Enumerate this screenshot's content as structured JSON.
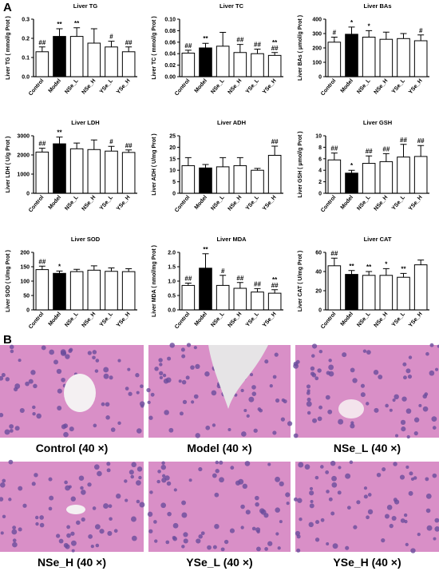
{
  "panel_labels": [
    "A",
    "B"
  ],
  "chart_data": [
    {
      "type": "bar",
      "title": "Liver TG",
      "y_label": "Liver TG ( mmol/g Prot )",
      "categories": [
        "Control",
        "Model",
        "NSe_L",
        "NSe_H",
        "YSe_L",
        "YSe_H"
      ],
      "values": [
        0.13,
        0.21,
        0.21,
        0.175,
        0.155,
        0.13
      ],
      "errors": [
        0.025,
        0.04,
        0.045,
        0.075,
        0.03,
        0.025
      ],
      "annotations": [
        [
          "##"
        ],
        [
          "**"
        ],
        [
          "**"
        ],
        null,
        [
          "#"
        ],
        [
          "##"
        ]
      ],
      "colors": [
        "#ffffff",
        "#000000",
        "#ffffff",
        "#ffffff",
        "#ffffff",
        "#ffffff"
      ],
      "ylim": [
        0,
        0.3
      ],
      "yticks": [
        {
          "value": 0,
          "label": "0.0"
        },
        0.1,
        0.2,
        0.3
      ]
    },
    {
      "type": "bar",
      "title": "Liver TC",
      "y_label": "Liver TC ( mmol/g Prot )",
      "categories": [
        "Control",
        "Model",
        "NSe_L",
        "NSe_H",
        "YSe_L",
        "YSe_H"
      ],
      "values": [
        0.041,
        0.05,
        0.053,
        0.042,
        0.04,
        0.037
      ],
      "errors": [
        0.005,
        0.008,
        0.024,
        0.014,
        0.008,
        0.005
      ],
      "annotations": [
        [
          "##"
        ],
        [
          "**"
        ],
        null,
        [
          "##"
        ],
        [
          "##"
        ],
        [
          "**",
          "##"
        ]
      ],
      "colors": [
        "#ffffff",
        "#000000",
        "#ffffff",
        "#ffffff",
        "#ffffff",
        "#ffffff"
      ],
      "ylim": [
        0,
        0.1
      ],
      "yticks": [
        {
          "value": 0,
          "label": "0.00"
        },
        0.02,
        0.04,
        0.06,
        0.08,
        {
          "value": 0.1,
          "label": "0.10"
        }
      ]
    },
    {
      "type": "bar",
      "title": "Liver BAs",
      "y_label": "Liver BAs ( μmol/g Prot )",
      "categories": [
        "Control",
        "Model",
        "NSe_L",
        "NSe_H",
        "YSe_L",
        "YSe_H"
      ],
      "values": [
        240,
        295,
        275,
        260,
        265,
        250
      ],
      "errors": [
        35,
        50,
        45,
        50,
        35,
        40
      ],
      "annotations": [
        [
          "#"
        ],
        [
          "*"
        ],
        [
          "*"
        ],
        null,
        null,
        [
          "#"
        ]
      ],
      "colors": [
        "#ffffff",
        "#000000",
        "#ffffff",
        "#ffffff",
        "#ffffff",
        "#ffffff"
      ],
      "ylim": [
        0,
        400
      ],
      "yticks": [
        0,
        100,
        200,
        300,
        400
      ]
    },
    {
      "type": "bar",
      "title": "Liver LDH",
      "y_label": "Liver LDH ( U/g Prot )",
      "categories": [
        "Control",
        "Model",
        "NSe_L",
        "NSe_H",
        "YSe_L",
        "YSe_H"
      ],
      "values": [
        2150,
        2580,
        2320,
        2280,
        2200,
        2130
      ],
      "errors": [
        200,
        350,
        300,
        500,
        250,
        130
      ],
      "annotations": [
        [
          "##"
        ],
        [
          "**"
        ],
        null,
        null,
        [
          "#"
        ],
        [
          "##"
        ]
      ],
      "colors": [
        "#ffffff",
        "#000000",
        "#ffffff",
        "#ffffff",
        "#ffffff",
        "#ffffff"
      ],
      "ylim": [
        0,
        3000
      ],
      "yticks": [
        0,
        1000,
        2000,
        3000
      ]
    },
    {
      "type": "bar",
      "title": "Liver ADH",
      "y_label": "Liver ADH ( U/mg Prot )",
      "categories": [
        "Control",
        "Model",
        "NSe_L",
        "NSe_H",
        "YSe_L",
        "YSe_H"
      ],
      "values": [
        12,
        11,
        11.5,
        12,
        10,
        16.5
      ],
      "errors": [
        3.5,
        1.5,
        4,
        3.5,
        0.8,
        4
      ],
      "annotations": [
        null,
        null,
        null,
        null,
        null,
        [
          "##"
        ]
      ],
      "colors": [
        "#ffffff",
        "#000000",
        "#ffffff",
        "#ffffff",
        "#ffffff",
        "#ffffff"
      ],
      "ylim": [
        0,
        25
      ],
      "yticks": [
        0,
        5,
        10,
        15,
        20,
        25
      ]
    },
    {
      "type": "bar",
      "title": "Liver GSH",
      "y_label": "Liver GSH ( μmol/g Prot )",
      "categories": [
        "Control",
        "Model",
        "NSe_L",
        "NSe_H",
        "YSe_L",
        "YSe_H"
      ],
      "values": [
        5.8,
        3.5,
        5.2,
        5.5,
        6.3,
        6.4
      ],
      "errors": [
        1.2,
        0.5,
        1.3,
        1.4,
        2.2,
        1.9
      ],
      "annotations": [
        [
          "##"
        ],
        [
          "*"
        ],
        [
          "##"
        ],
        [
          "##"
        ],
        [
          "##"
        ],
        [
          "##"
        ]
      ],
      "colors": [
        "#ffffff",
        "#000000",
        "#ffffff",
        "#ffffff",
        "#ffffff",
        "#ffffff"
      ],
      "ylim": [
        0,
        10
      ],
      "yticks": [
        0,
        2,
        4,
        6,
        8,
        10
      ]
    },
    {
      "type": "bar",
      "title": "Liver SOD",
      "y_label": "Liver SOD ( U/mg Prot )",
      "categories": [
        "Control",
        "Model",
        "NSe_L",
        "NSe_H",
        "YSe_L",
        "YSe_H"
      ],
      "values": [
        140,
        127,
        133,
        138,
        134,
        133
      ],
      "errors": [
        12,
        8,
        8,
        15,
        12,
        10
      ],
      "annotations": [
        [
          "##"
        ],
        [
          "*"
        ],
        null,
        null,
        null,
        null
      ],
      "colors": [
        "#ffffff",
        "#000000",
        "#ffffff",
        "#ffffff",
        "#ffffff",
        "#ffffff"
      ],
      "ylim": [
        0,
        200
      ],
      "yticks": [
        0,
        50,
        100,
        150,
        200
      ]
    },
    {
      "type": "bar",
      "title": "Liver MDA",
      "y_label": "Liver MDA ( nmol/mg Prot )",
      "categories": [
        "Control",
        "Model",
        "NSe_L",
        "NSe_H",
        "YSe_L",
        "YSe_H"
      ],
      "values": [
        0.85,
        1.45,
        0.85,
        0.75,
        0.62,
        0.58
      ],
      "errors": [
        0.08,
        0.5,
        0.35,
        0.2,
        0.12,
        0.12
      ],
      "annotations": [
        [
          "##"
        ],
        [
          "**"
        ],
        [
          "#"
        ],
        [
          "##"
        ],
        [
          "##"
        ],
        [
          "**",
          "##"
        ]
      ],
      "colors": [
        "#ffffff",
        "#000000",
        "#ffffff",
        "#ffffff",
        "#ffffff",
        "#ffffff"
      ],
      "ylim": [
        0,
        2
      ],
      "yticks": [
        {
          "value": 0,
          "label": "0.0"
        },
        0.5,
        {
          "value": 1,
          "label": "1.0"
        },
        1.5,
        {
          "value": 2,
          "label": "2.0"
        }
      ]
    },
    {
      "type": "bar",
      "title": "Liver CAT",
      "y_label": "Liver CAT ( U/mg Prot )",
      "categories": [
        "Control",
        "Model",
        "NSe_L",
        "NSe_H",
        "YSe_L",
        "YSe_H"
      ],
      "values": [
        46,
        37,
        36,
        36,
        34,
        47
      ],
      "errors": [
        8,
        4,
        4,
        7,
        4,
        5
      ],
      "annotations": [
        [
          "##"
        ],
        [
          "**"
        ],
        [
          "**"
        ],
        [
          "*"
        ],
        [
          "**"
        ],
        null
      ],
      "colors": [
        "#ffffff",
        "#000000",
        "#ffffff",
        "#ffffff",
        "#ffffff",
        "#ffffff"
      ],
      "ylim": [
        0,
        60
      ],
      "yticks": [
        0,
        20,
        40,
        60
      ]
    }
  ],
  "images": [
    {
      "caption": "Control (40 ×)"
    },
    {
      "caption": "Model (40 ×)"
    },
    {
      "caption": "NSe_L (40 ×)"
    },
    {
      "caption": "NSe_H (40 ×)"
    },
    {
      "caption": "YSe_L (40 ×)"
    },
    {
      "caption": "YSe_H (40 ×)"
    }
  ]
}
